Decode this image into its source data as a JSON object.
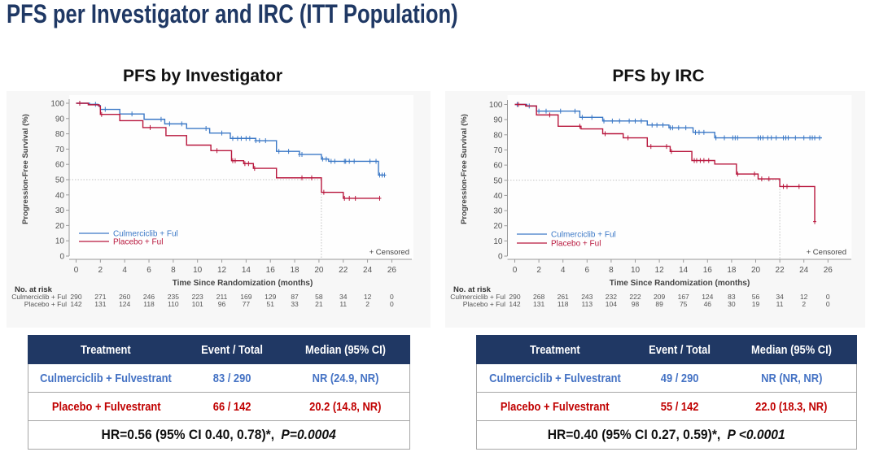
{
  "title": "PFS per Investigator and IRC (ITT Population)",
  "colors": {
    "title": "#1f3864",
    "table_header_bg": "#203864",
    "culmerciclib_text": "#4472c4",
    "placebo_text": "#c00000"
  },
  "tables": [
    {
      "headers": [
        "Treatment",
        "Event / Total",
        "Median (95% CI)"
      ],
      "rows": [
        {
          "treatment": "Culmerciclib + Fulvestrant",
          "event_total": "83 / 290",
          "median_ci": "NR (24.9, NR)"
        },
        {
          "treatment": "Placebo + Fulvestrant",
          "event_total": "66 / 142",
          "median_ci": "20.2 (14.8, NR)"
        }
      ],
      "footer": {
        "hr": "HR=0.56 (95% CI 0.40, 0.78)*,",
        "p": "P=0.0004"
      }
    },
    {
      "headers": [
        "Treatment",
        "Event / Total",
        "Median (95% CI)"
      ],
      "rows": [
        {
          "treatment": "Culmerciclib + Fulvestrant",
          "event_total": "49 / 290",
          "median_ci": "NR (NR, NR)"
        },
        {
          "treatment": "Placebo + Fulvestrant",
          "event_total": "55 / 142",
          "median_ci": "22.0 (18.3, NR)"
        }
      ],
      "footer": {
        "hr": "HR=0.40 (95% CI 0.27, 0.59)*,",
        "p": "P <0.0001"
      }
    }
  ],
  "chart_data": [
    {
      "type": "line",
      "subtype": "kaplan-meier",
      "title": "PFS by Investigator",
      "xlabel": "Time Since Randomization (months)",
      "ylabel": "Progression-Free Survival (%)",
      "xlim": [
        0,
        26
      ],
      "ylim": [
        0,
        100
      ],
      "xticks": [
        0,
        2,
        4,
        6,
        8,
        10,
        12,
        14,
        16,
        18,
        20,
        22,
        24,
        26
      ],
      "yticks": [
        0,
        10,
        20,
        30,
        40,
        50,
        60,
        70,
        80,
        90,
        100
      ],
      "grid": false,
      "reference_line_y": 50,
      "median_marker_months": 20.2,
      "legend": "bottom-left",
      "censored_label": "+ Censored",
      "series": [
        {
          "name": "Culmerciclib + Ful",
          "color": "#3b78c6",
          "steps": [
            [
              0,
              100
            ],
            [
              1.1,
              99.3
            ],
            [
              1.8,
              98.5
            ],
            [
              2.0,
              96
            ],
            [
              3.6,
              93
            ],
            [
              5.6,
              89.5
            ],
            [
              7.3,
              86.5
            ],
            [
              9.1,
              83.5
            ],
            [
              11.0,
              80.5
            ],
            [
              12.7,
              77
            ],
            [
              14.8,
              75.5
            ],
            [
              16.5,
              68.5
            ],
            [
              18.4,
              66.5
            ],
            [
              20.2,
              63.5
            ],
            [
              20.8,
              62
            ],
            [
              24.9,
              53
            ]
          ],
          "end_months": 25.4,
          "censored_months": [
            0.3,
            1.6,
            2.4,
            4.6,
            7.0,
            7.7,
            8.7,
            10.7,
            12.0,
            12.9,
            13.3,
            13.6,
            14.0,
            14.3,
            14.8,
            15.1,
            15.6,
            16.7,
            17.5,
            18.4,
            18.6,
            20.3,
            20.6,
            21.0,
            21.3,
            22.1,
            22.2,
            22.5,
            22.9,
            24.2,
            24.7,
            25.0,
            25.2,
            25.4
          ]
        },
        {
          "name": "Placebo + Ful",
          "color": "#b8173d",
          "steps": [
            [
              0,
              100
            ],
            [
              1.0,
              99
            ],
            [
              1.9,
              98
            ],
            [
              2.0,
              92.7
            ],
            [
              3.6,
              88.6
            ],
            [
              5.5,
              84.1
            ],
            [
              7.4,
              78.8
            ],
            [
              9.1,
              72.6
            ],
            [
              11.1,
              69
            ],
            [
              12.8,
              62.4
            ],
            [
              13.8,
              60.5
            ],
            [
              14.6,
              57.4
            ],
            [
              16.5,
              51.2
            ],
            [
              20.2,
              41.7
            ],
            [
              22.0,
              37.8
            ]
          ],
          "end_months": 25.0,
          "censored_months": [
            0.3,
            2.1,
            6.1,
            11.6,
            12.9,
            13.1,
            13.9,
            14.2,
            14.7,
            18.6,
            19.4,
            20.4,
            22.1,
            22.5,
            23.0,
            25.0
          ]
        }
      ],
      "at_risk": {
        "title": "No. at risk",
        "times": [
          0,
          2,
          4,
          6,
          8,
          10,
          12,
          14,
          16,
          18,
          20,
          22,
          24,
          26
        ],
        "rows": [
          {
            "label": "Culmerciclib + Ful",
            "values": [
              290,
              271,
              260,
              246,
              235,
              223,
              211,
              169,
              129,
              87,
              58,
              34,
              12,
              0
            ]
          },
          {
            "label": "Placebo + Ful",
            "values": [
              142,
              131,
              124,
              118,
              110,
              101,
              96,
              77,
              51,
              33,
              21,
              11,
              2,
              0
            ]
          }
        ]
      }
    },
    {
      "type": "line",
      "subtype": "kaplan-meier",
      "title": "PFS by IRC",
      "xlabel": "Time Since Randomization (months)",
      "ylabel": "Progression-Free Survival (%)",
      "xlim": [
        0,
        26
      ],
      "ylim": [
        0,
        100
      ],
      "xticks": [
        0,
        2,
        4,
        6,
        8,
        10,
        12,
        14,
        16,
        18,
        20,
        22,
        24,
        26
      ],
      "yticks": [
        0,
        10,
        20,
        30,
        40,
        50,
        60,
        70,
        80,
        90,
        100
      ],
      "grid": false,
      "reference_line_y": 50,
      "median_marker_months": 22.0,
      "legend": "bottom-left",
      "censored_label": "+ Censored",
      "series": [
        {
          "name": "Culmerciclib + Ful",
          "color": "#3b78c6",
          "steps": [
            [
              0,
              100
            ],
            [
              1.0,
              99
            ],
            [
              1.8,
              95.6
            ],
            [
              5.4,
              91.5
            ],
            [
              7.3,
              89.1
            ],
            [
              11.0,
              86.4
            ],
            [
              12.8,
              84.6
            ],
            [
              14.8,
              81.6
            ],
            [
              16.6,
              78
            ]
          ],
          "end_months": 25.5,
          "censored_months": [
            0.2,
            1.2,
            2.0,
            2.6,
            3.8,
            5.0,
            5.6,
            6.4,
            7.4,
            8.1,
            8.7,
            9.5,
            10.0,
            10.5,
            11.4,
            11.8,
            12.3,
            12.9,
            13.1,
            13.6,
            14.2,
            15.0,
            15.3,
            15.7,
            16.7,
            17.4,
            18.1,
            18.3,
            18.5,
            20.2,
            20.4,
            20.6,
            21.0,
            21.3,
            21.7,
            22.3,
            22.5,
            22.7,
            23.3,
            24.0,
            24.5,
            24.7,
            24.9,
            25.3
          ]
        },
        {
          "name": "Placebo + Ful",
          "color": "#b8173d",
          "steps": [
            [
              0,
              100
            ],
            [
              0.9,
              99
            ],
            [
              1.8,
              93.1
            ],
            [
              3.6,
              85.6
            ],
            [
              5.5,
              83.9
            ],
            [
              7.3,
              80.7
            ],
            [
              9.0,
              78
            ],
            [
              11.0,
              72.3
            ],
            [
              12.9,
              69
            ],
            [
              14.7,
              63
            ],
            [
              16.6,
              60.7
            ],
            [
              18.4,
              54.1
            ],
            [
              20.2,
              50.9
            ],
            [
              22.0,
              45.9
            ],
            [
              24.9,
              22.7
            ]
          ],
          "end_months": 24.9,
          "censored_months": [
            0.3,
            2.9,
            5.4,
            7.5,
            9.4,
            11.3,
            12.6,
            13.0,
            14.9,
            15.1,
            15.4,
            15.7,
            16.1,
            18.5,
            19.9,
            20.5,
            21.1,
            22.3,
            22.6,
            23.6,
            24.9
          ]
        }
      ],
      "at_risk": {
        "title": "No. at risk",
        "times": [
          0,
          2,
          4,
          6,
          8,
          10,
          12,
          14,
          16,
          18,
          20,
          22,
          24,
          26
        ],
        "rows": [
          {
            "label": "Culmerciclib + Ful",
            "values": [
              290,
              268,
              261,
              243,
              232,
              222,
              209,
              167,
              124,
              83,
              56,
              34,
              12,
              0
            ]
          },
          {
            "label": "Placebo + Ful",
            "values": [
              142,
              131,
              118,
              113,
              104,
              98,
              89,
              75,
              46,
              30,
              19,
              11,
              2,
              0
            ]
          }
        ]
      }
    }
  ]
}
